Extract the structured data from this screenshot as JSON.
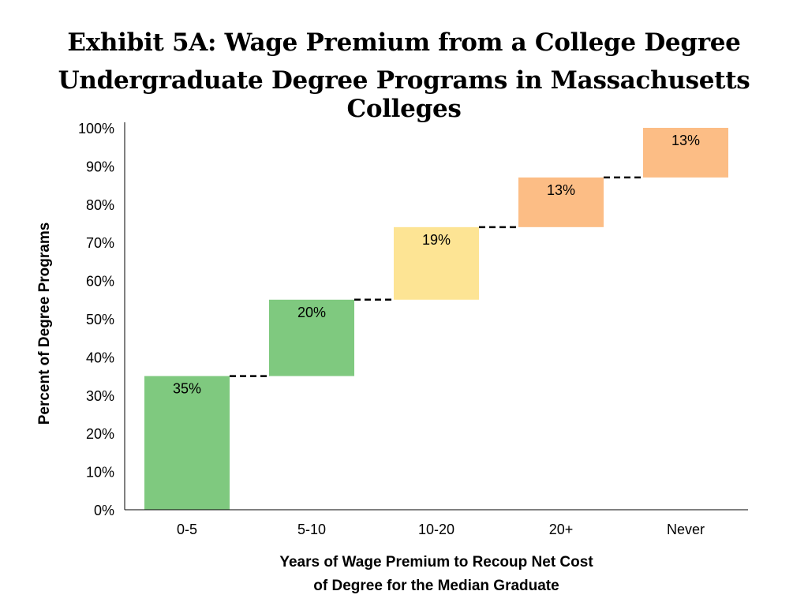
{
  "title": "Exhibit 5A: Wage Premium from a College Degree",
  "subtitle": "Undergraduate Degree Programs in Massachusetts Colleges",
  "chart_data": {
    "type": "bar",
    "subtype": "waterfall",
    "categories": [
      "0-5",
      "5-10",
      "10-20",
      "20+",
      "Never"
    ],
    "values": [
      35,
      20,
      19,
      13,
      13
    ],
    "data_labels": [
      "35%",
      "20%",
      "19%",
      "13%",
      "13%"
    ],
    "bar_colors": [
      "#7fc97f",
      "#7fc97f",
      "#fde494",
      "#fcbd85",
      "#fcbd85"
    ],
    "connector_lines": "dashed",
    "ylabel": "Percent of Degree Programs",
    "xlabel_line1": "Years of Wage Premium to Recoup Net Cost",
    "xlabel_line2": "of Degree for the Median Graduate",
    "ylim": [
      0,
      100
    ],
    "yticks": [
      "0%",
      "10%",
      "20%",
      "30%",
      "40%",
      "50%",
      "60%",
      "70%",
      "80%",
      "90%",
      "100%"
    ],
    "grid": false,
    "legend": "none"
  }
}
